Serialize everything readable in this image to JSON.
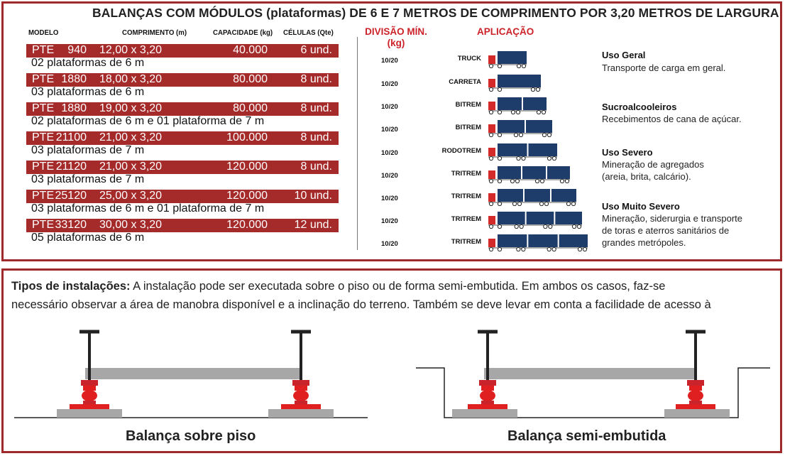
{
  "title": "BALANÇAS COM MÓDULOS (plataformas) DE 6 E 7 METROS DE COMPRIMENTO POR 3,20 METROS DE LARGURA",
  "table_headers": {
    "modelo": "MODELO",
    "comprimento": "COMPRIMENTO (m)",
    "capacidade": "CAPACIDADE (kg)",
    "celulas": "CÉLULAS (Qte)",
    "divisao": "DIVISÃO MÍN.",
    "divisao_unit": "(kg)",
    "aplicacao": "APLICAÇÃO"
  },
  "models": [
    {
      "prefix": "PTE",
      "number": "940",
      "dims": "12,00 x 3,20",
      "capacity": "40.000",
      "cells": "6 und.",
      "desc": "02 plataformas de 6 m"
    },
    {
      "prefix": "PTE",
      "number": "1880",
      "dims": "18,00 x 3,20",
      "capacity": "80.000",
      "cells": "8 und.",
      "desc": "03 plataformas de 6 m"
    },
    {
      "prefix": "PTE",
      "number": "1880",
      "dims": "19,00 x 3,20",
      "capacity": "80.000",
      "cells": "8 und.",
      "desc": "02 plataformas de 6 m e 01 plataforma de 7 m"
    },
    {
      "prefix": "PTE",
      "number": "21100",
      "dims": "21,00 x 3,20",
      "capacity": "100.000",
      "cells": "8 und.",
      "desc": "03 plataformas de 7 m"
    },
    {
      "prefix": "PTE",
      "number": "21120",
      "dims": "21,00 x 3,20",
      "capacity": "120.000",
      "cells": "8 und.",
      "desc": "03 plataformas de 7 m"
    },
    {
      "prefix": "PTE",
      "number": "25120",
      "dims": "25,00 x 3,20",
      "capacity": "120.000",
      "cells": "10 und.",
      "desc": "03 plataformas de 6 m e 01 plataforma de 7 m"
    },
    {
      "prefix": "PTE",
      "number": "33120",
      "dims": "30,00 x 3,20",
      "capacity": "120.000",
      "cells": "12 und.",
      "desc": "05 plataformas de 6 m"
    }
  ],
  "applications": [
    {
      "division": "10/20",
      "vehicle": "TRUCK",
      "segments": 1
    },
    {
      "division": "10/20",
      "vehicle": "CARRETA",
      "segments": 1
    },
    {
      "division": "10/20",
      "vehicle": "BITREM",
      "segments": 2
    },
    {
      "division": "10/20",
      "vehicle": "BITREM",
      "segments": 2
    },
    {
      "division": "10/20",
      "vehicle": "RODOTREM",
      "segments": 2
    },
    {
      "division": "10/20",
      "vehicle": "TRITREM",
      "segments": 3
    },
    {
      "division": "10/20",
      "vehicle": "TRITREM",
      "segments": 3
    },
    {
      "division": "10/20",
      "vehicle": "TRITREM",
      "segments": 3
    },
    {
      "division": "10/20",
      "vehicle": "TRITREM",
      "segments": 3
    }
  ],
  "uses": [
    {
      "title": "Uso Geral",
      "lines": [
        "Transporte de carga  em geral."
      ]
    },
    {
      "title": "Sucroalcooleiros",
      "lines": [
        "Recebimentos de cana de açúcar."
      ]
    },
    {
      "title": "Uso Severo",
      "lines": [
        "Mineração de agregados",
        "(areia, brita, calcário)."
      ]
    },
    {
      "title": "Uso Muito Severo",
      "lines": [
        "Mineração, siderurgia e transporte",
        "de toras e aterros sanitários de",
        "grandes metrópoles."
      ]
    }
  ],
  "installation": {
    "label": "Tipos de instalações:",
    "line1": " A instalação pode ser executada sobre o piso ou de forma semi-embutida. Em ambos os casos, faz-se",
    "line2": "necessário observar a área de manobra disponível e a inclinação do terreno. Também se deve levar em conta a facilidade de acesso à"
  },
  "captions": {
    "floor": "Balança sobre piso",
    "semi": "Balança semi-embutida"
  },
  "colors": {
    "accent_red": "#a52a2a",
    "header_red": "#cc2229",
    "truck_blue": "#1f3d6b",
    "cab_red": "#d42a2a",
    "platform_gray": "#a7a7a7",
    "load_cell_red": "#e02020"
  }
}
